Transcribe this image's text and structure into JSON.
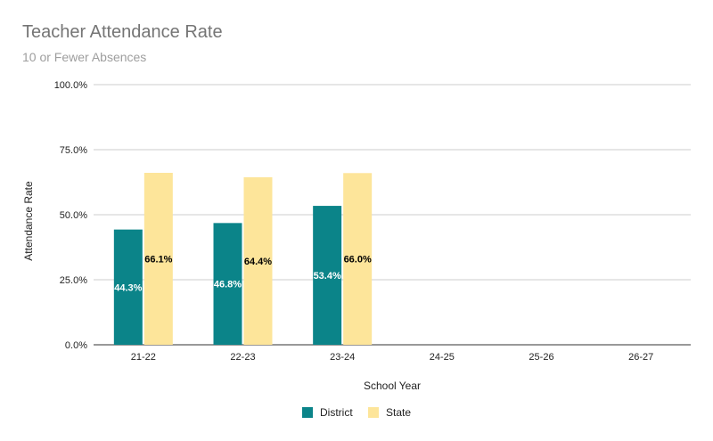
{
  "chart_data": {
    "type": "bar",
    "title": "Teacher Attendance Rate",
    "subtitle": "10 or Fewer Absences",
    "xlabel": "School Year",
    "ylabel": "Attendance Rate",
    "categories": [
      "21-22",
      "22-23",
      "23-24",
      "24-25",
      "25-26",
      "26-27"
    ],
    "ylim": [
      0,
      100
    ],
    "yticks": [
      "0.0%",
      "25.0%",
      "50.0%",
      "75.0%",
      "100.0%"
    ],
    "grid": true,
    "legend_position": "bottom",
    "series": [
      {
        "name": "District",
        "color": "#0b8489",
        "values": [
          44.3,
          46.8,
          53.4,
          null,
          null,
          null
        ],
        "labels": [
          "44.3%",
          "46.8%",
          "53.4%",
          "",
          "",
          ""
        ]
      },
      {
        "name": "State",
        "color": "#fde59a",
        "values": [
          66.1,
          64.4,
          66.0,
          null,
          null,
          null
        ],
        "labels": [
          "66.1%",
          "64.4%",
          "66.0%",
          "",
          "",
          ""
        ]
      }
    ]
  }
}
